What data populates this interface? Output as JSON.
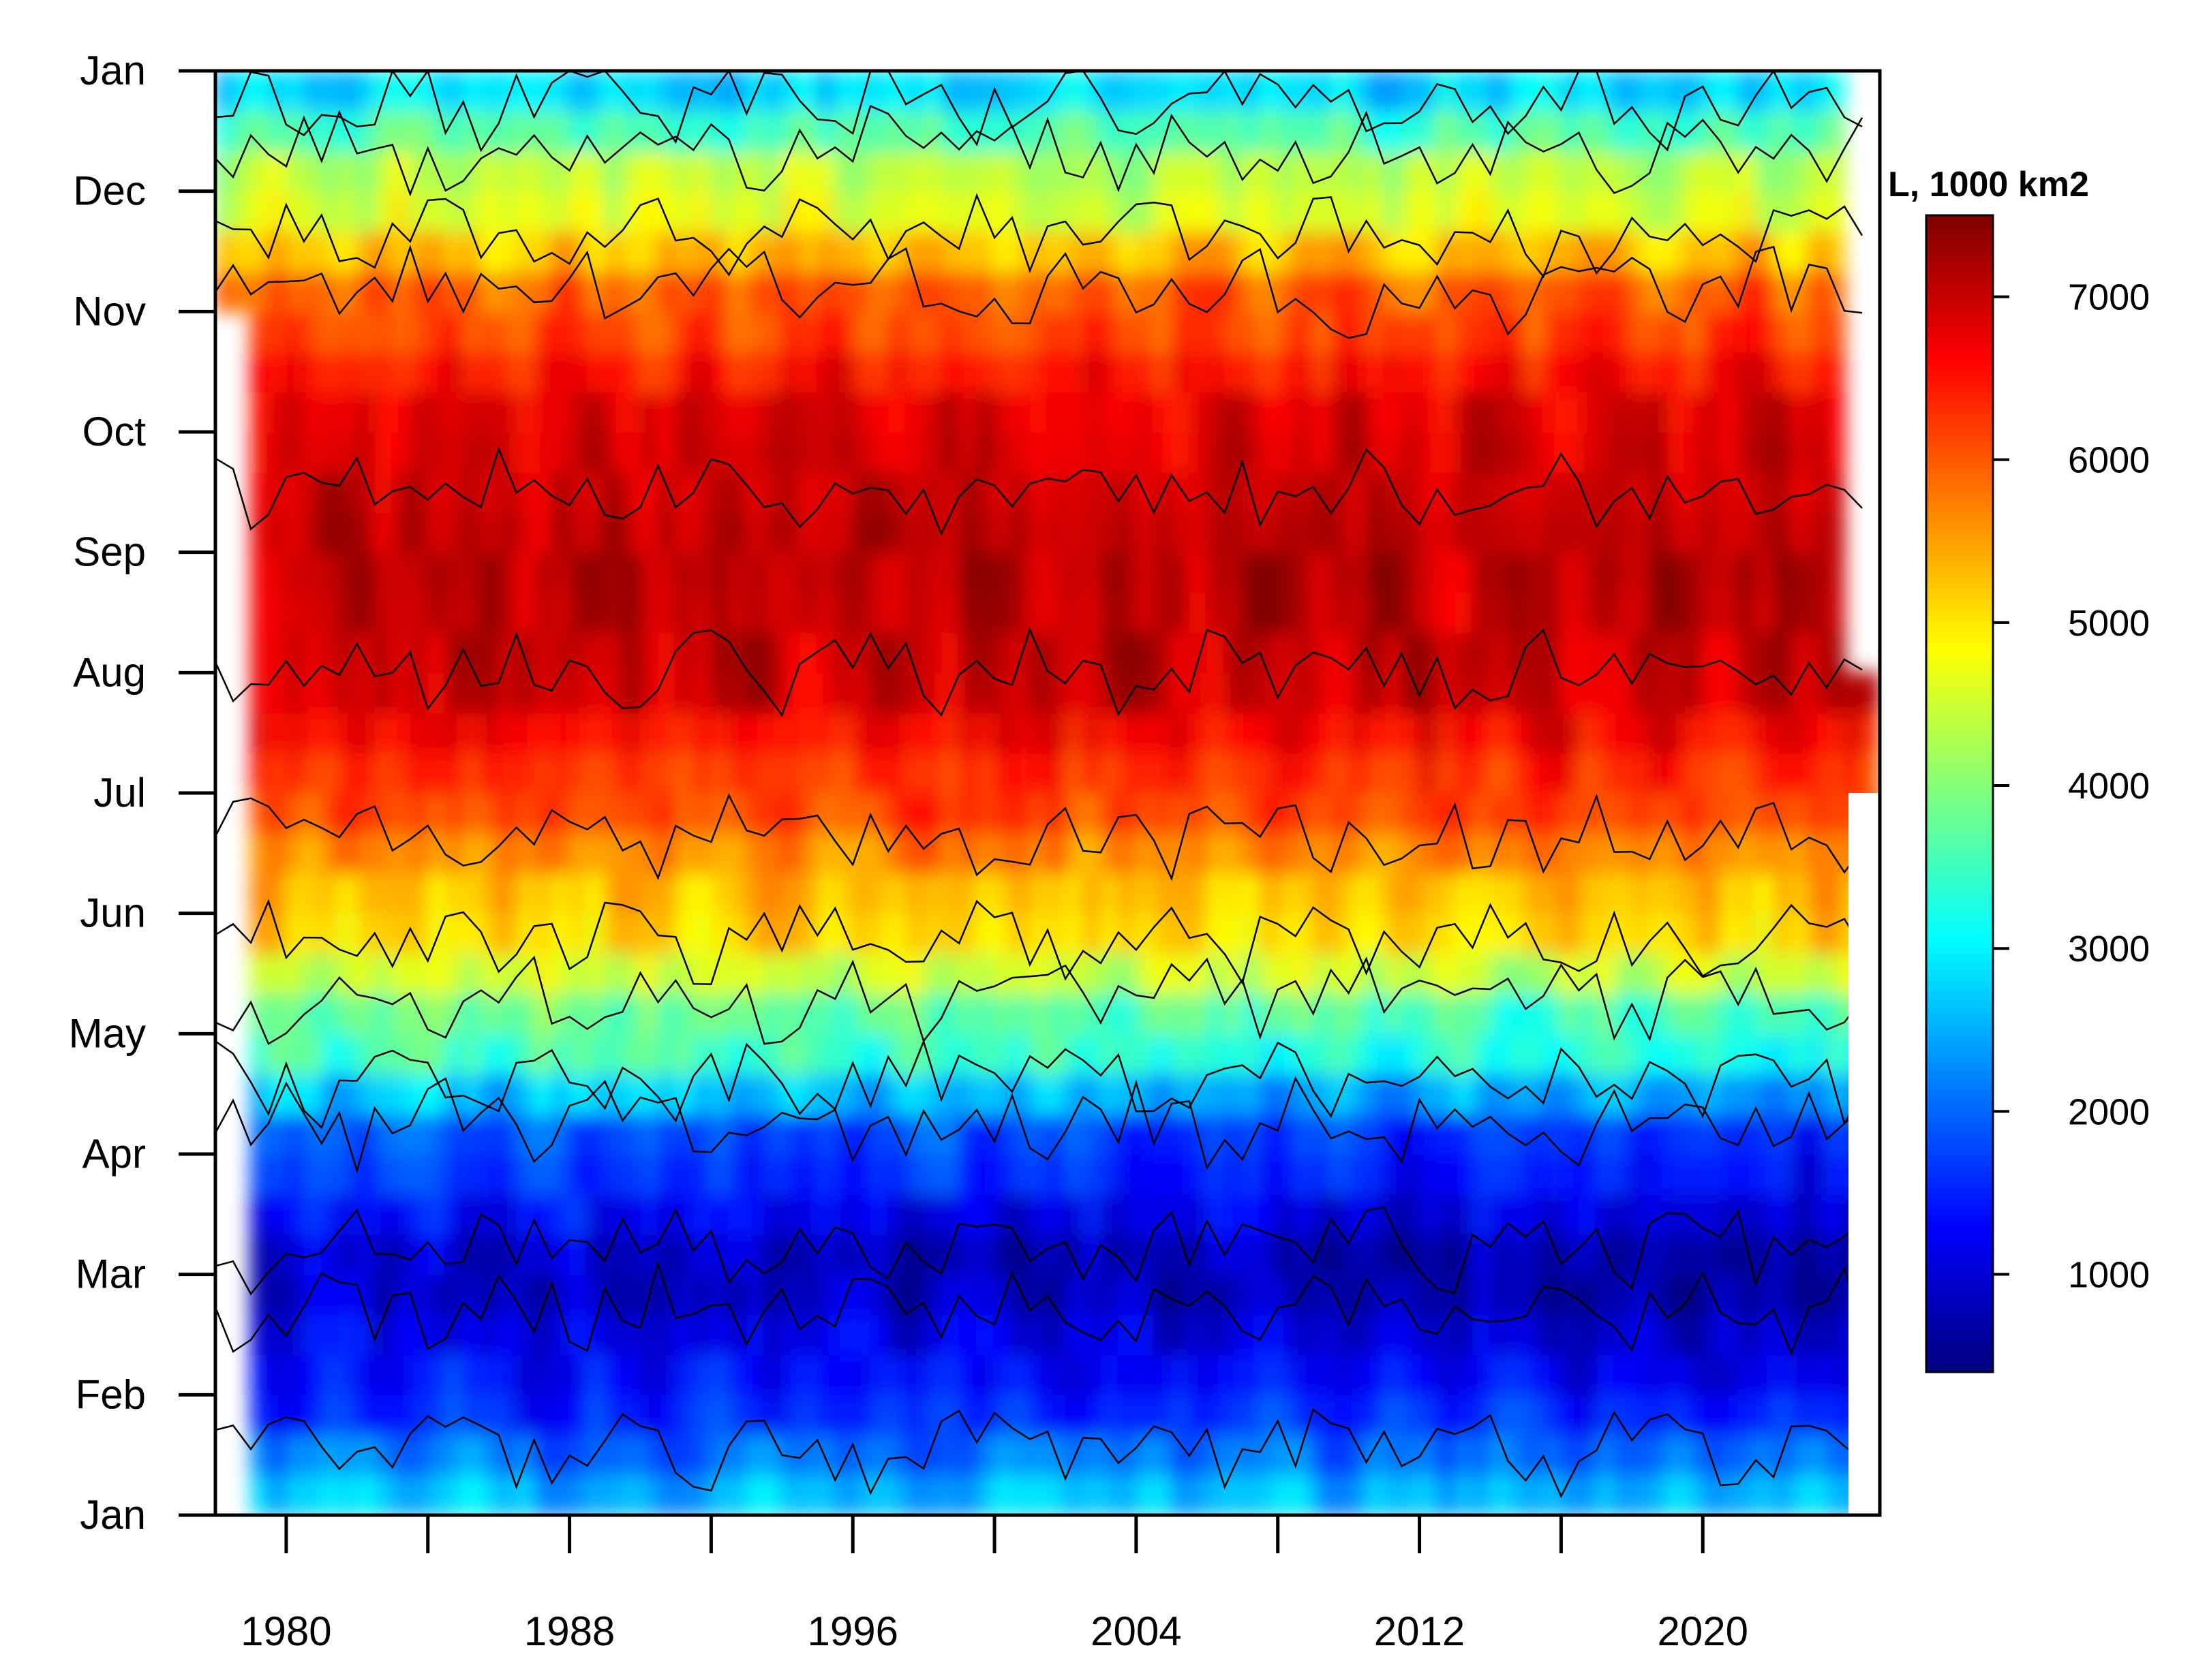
{
  "chart_data": {
    "type": "heatmap",
    "title": "",
    "xlabel": "",
    "ylabel": "",
    "x_ticks": [
      "1980",
      "1988",
      "1996",
      "2004",
      "2012",
      "2020"
    ],
    "x_tick_years": [
      1980,
      1984,
      1988,
      1992,
      1996,
      2000,
      2004,
      2008,
      2012,
      2016,
      2020
    ],
    "x_range": [
      1978,
      2025
    ],
    "y_ticks": [
      "Jan",
      "Feb",
      "Mar",
      "Apr",
      "May",
      "Jun",
      "Jul",
      "Aug",
      "Sep",
      "Oct",
      "Nov",
      "Dec",
      "Jan"
    ],
    "y_range_months": [
      0,
      12
    ],
    "colorbar": {
      "title": "L, 1000 km2",
      "ticks": [
        1000,
        2000,
        3000,
        4000,
        5000,
        6000,
        7000
      ],
      "range": [
        400,
        7500
      ],
      "colors": [
        "#00007f",
        "#0000ff",
        "#007fff",
        "#00ffff",
        "#7fff7f",
        "#ffff00",
        "#ff7f00",
        "#ff0000",
        "#7f0000"
      ]
    },
    "contour_levels": [
      1000,
      2000,
      3000,
      4000,
      5000,
      6000,
      7000
    ],
    "data_start": "1978-11",
    "data_end": "2024-07",
    "monthly_climatology": {
      "months": [
        "Jan",
        "Feb",
        "Mar",
        "Apr",
        "May",
        "Jun",
        "Jul",
        "Aug",
        "Sep",
        "Oct",
        "Nov",
        "Dec",
        "Jan"
      ],
      "values": [
        2700,
        1500,
        900,
        1700,
        3700,
        5200,
        6300,
        7000,
        7100,
        6900,
        6100,
        4500,
        2700
      ]
    }
  }
}
